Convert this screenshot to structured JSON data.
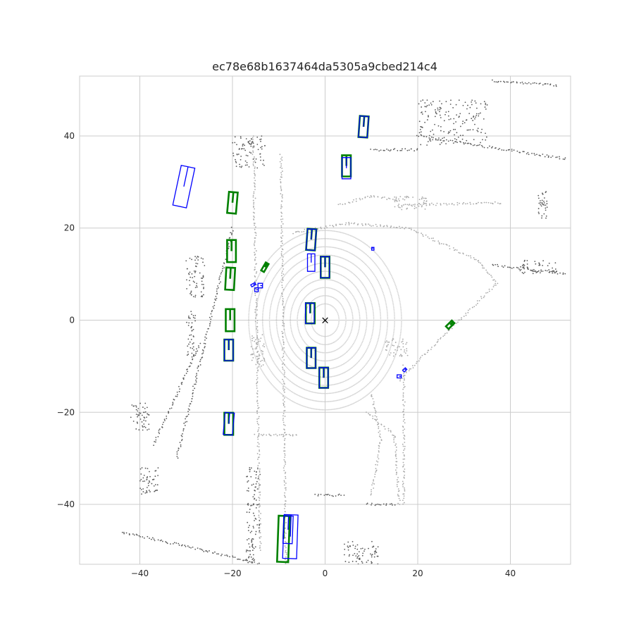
{
  "chart_data": {
    "type": "scatter",
    "title": "ec78e68b1637464da5305a9cbed214c4",
    "xlabel": "",
    "ylabel": "",
    "xlim": [
      -53,
      53
    ],
    "ylim": [
      -53,
      53
    ],
    "xticks": [
      -40,
      -20,
      0,
      20,
      40
    ],
    "yticks": [
      -40,
      -20,
      0,
      20,
      40
    ],
    "grid": true,
    "ego_marker": {
      "x": 0,
      "y": 0,
      "symbol": "×",
      "color": "#000000"
    },
    "colors": {
      "ground_truth": "#008000",
      "prediction": "#0000ff",
      "lidar_near": "#d3d3d3",
      "lidar_mid": "#a9a9a9",
      "lidar_far": "#595959"
    },
    "ground_truth_boxes": [
      {
        "cx": 8.3,
        "cy": 42.0,
        "w": 1.9,
        "l": 4.6,
        "yaw": 86
      },
      {
        "cx": 4.6,
        "cy": 33.5,
        "w": 1.9,
        "l": 4.6,
        "yaw": 90
      },
      {
        "cx": -20.0,
        "cy": 25.5,
        "w": 1.9,
        "l": 4.6,
        "yaw": 85
      },
      {
        "cx": -20.2,
        "cy": 15.0,
        "w": 1.9,
        "l": 4.8,
        "yaw": 90
      },
      {
        "cx": -20.5,
        "cy": 9.0,
        "w": 1.9,
        "l": 4.8,
        "yaw": 87
      },
      {
        "cx": -3.0,
        "cy": 17.5,
        "w": 1.9,
        "l": 4.6,
        "yaw": 86
      },
      {
        "cx": 0.0,
        "cy": 11.5,
        "w": 1.9,
        "l": 4.6,
        "yaw": 90
      },
      {
        "cx": -13.0,
        "cy": 11.5,
        "w": 0.7,
        "l": 2.0,
        "yaw": 60
      },
      {
        "cx": -20.5,
        "cy": 0.0,
        "w": 1.9,
        "l": 4.8,
        "yaw": 90
      },
      {
        "cx": -20.8,
        "cy": -6.5,
        "w": 1.9,
        "l": 4.6,
        "yaw": 90
      },
      {
        "cx": -3.2,
        "cy": 1.5,
        "w": 1.9,
        "l": 4.4,
        "yaw": 90
      },
      {
        "cx": -3.0,
        "cy": -8.2,
        "w": 1.9,
        "l": 4.4,
        "yaw": 90
      },
      {
        "cx": -0.3,
        "cy": -12.5,
        "w": 1.9,
        "l": 4.4,
        "yaw": 90
      },
      {
        "cx": 27.0,
        "cy": -1.0,
        "w": 0.8,
        "l": 1.8,
        "yaw": 45
      },
      {
        "cx": -20.8,
        "cy": -22.5,
        "w": 1.9,
        "l": 4.8,
        "yaw": 90
      },
      {
        "cx": -9.0,
        "cy": -47.5,
        "w": 2.4,
        "l": 10.0,
        "yaw": 88
      }
    ],
    "predicted_boxes": [
      {
        "cx": 8.3,
        "cy": 42.0,
        "w": 1.9,
        "l": 4.6,
        "yaw": 86
      },
      {
        "cx": 4.6,
        "cy": 33.0,
        "w": 1.9,
        "l": 4.6,
        "yaw": 90
      },
      {
        "cx": -30.5,
        "cy": 29.0,
        "w": 3.0,
        "l": 8.8,
        "yaw": 78
      },
      {
        "cx": -3.0,
        "cy": 17.5,
        "w": 1.9,
        "l": 4.6,
        "yaw": 86
      },
      {
        "cx": -3.0,
        "cy": 12.5,
        "w": 1.6,
        "l": 3.8,
        "yaw": 90
      },
      {
        "cx": 0.0,
        "cy": 11.5,
        "w": 1.9,
        "l": 4.6,
        "yaw": 90
      },
      {
        "cx": 10.3,
        "cy": 15.5,
        "w": 0.5,
        "l": 0.6,
        "yaw": 90
      },
      {
        "cx": -15.5,
        "cy": 7.7,
        "w": 0.5,
        "l": 1.0,
        "yaw": 30
      },
      {
        "cx": -14.0,
        "cy": 7.5,
        "w": 1.0,
        "l": 1.0,
        "yaw": 0
      },
      {
        "cx": -14.8,
        "cy": 6.6,
        "w": 0.8,
        "l": 0.8,
        "yaw": 0
      },
      {
        "cx": -3.3,
        "cy": 1.5,
        "w": 1.9,
        "l": 4.4,
        "yaw": 90
      },
      {
        "cx": -20.8,
        "cy": -6.5,
        "w": 1.9,
        "l": 4.6,
        "yaw": 90
      },
      {
        "cx": -3.0,
        "cy": -8.2,
        "w": 1.9,
        "l": 4.4,
        "yaw": 90
      },
      {
        "cx": -0.3,
        "cy": -12.5,
        "w": 1.9,
        "l": 4.4,
        "yaw": 90
      },
      {
        "cx": 16.0,
        "cy": -12.2,
        "w": 0.7,
        "l": 0.9,
        "yaw": 0
      },
      {
        "cx": 17.2,
        "cy": -10.8,
        "w": 0.5,
        "l": 0.8,
        "yaw": 45
      },
      {
        "cx": -20.8,
        "cy": -22.5,
        "w": 2.0,
        "l": 4.8,
        "yaw": 85
      },
      {
        "cx": -7.5,
        "cy": -47.0,
        "w": 3.0,
        "l": 9.5,
        "yaw": 88
      },
      {
        "cx": -8.0,
        "cy": -45.5,
        "w": 2.0,
        "l": 6.0,
        "yaw": 88
      }
    ],
    "lidar_rings": {
      "center": [
        0,
        0
      ],
      "radii": [
        3,
        4.5,
        6,
        7.5,
        9,
        10.5,
        12,
        13.5,
        15,
        16.5
      ],
      "aspect_y": 1.18
    },
    "lidar_segments": [
      {
        "shade": "far",
        "points": [
          [
            -20,
            20
          ],
          [
            -32,
            -30
          ]
        ]
      },
      {
        "shade": "far",
        "points": [
          [
            -27,
            -5
          ],
          [
            -37,
            -27
          ]
        ]
      },
      {
        "shade": "mid",
        "points": [
          [
            -15.5,
            40
          ],
          [
            -14,
            -50
          ]
        ]
      },
      {
        "shade": "mid",
        "points": [
          [
            -9.5,
            36
          ],
          [
            -8.5,
            -53
          ]
        ]
      },
      {
        "shade": "mid",
        "points": [
          [
            16,
            25
          ],
          [
            38,
            25.5
          ]
        ]
      },
      {
        "shade": "mid",
        "points": [
          [
            3,
            25
          ],
          [
            10,
            27
          ],
          [
            16,
            26
          ]
        ]
      },
      {
        "shade": "mid",
        "points": [
          [
            -7,
            19
          ],
          [
            5,
            21
          ],
          [
            18,
            20
          ],
          [
            33,
            13
          ],
          [
            37,
            8
          ]
        ]
      },
      {
        "shade": "mid",
        "points": [
          [
            37,
            8
          ],
          [
            16,
            -13
          ]
        ]
      },
      {
        "shade": "mid",
        "points": [
          [
            17,
            -10
          ],
          [
            17,
            -40
          ]
        ]
      },
      {
        "shade": "mid",
        "points": [
          [
            9,
            -20
          ],
          [
            15,
            -25
          ],
          [
            16,
            -40
          ]
        ]
      },
      {
        "shade": "mid",
        "points": [
          [
            10,
            -16
          ],
          [
            12,
            -26
          ],
          [
            10,
            -38
          ]
        ]
      },
      {
        "shade": "far",
        "points": [
          [
            -44,
            -46
          ],
          [
            -26,
            -50
          ],
          [
            -14,
            -53
          ]
        ]
      },
      {
        "shade": "far",
        "points": [
          [
            9,
            -40
          ],
          [
            15,
            -40
          ]
        ]
      },
      {
        "shade": "far",
        "points": [
          [
            36,
            12
          ],
          [
            52,
            10
          ]
        ]
      },
      {
        "shade": "far",
        "points": [
          [
            36,
            52
          ],
          [
            50,
            51
          ]
        ]
      },
      {
        "shade": "far",
        "points": [
          [
            20,
            40
          ],
          [
            52,
            35
          ]
        ]
      },
      {
        "shade": "far",
        "points": [
          [
            10,
            37
          ],
          [
            20,
            37
          ]
        ]
      },
      {
        "shade": "mid",
        "points": [
          [
            -15,
            -25
          ],
          [
            -6,
            -25
          ]
        ]
      },
      {
        "shade": "far",
        "points": [
          [
            -2,
            -38
          ],
          [
            4,
            -38
          ]
        ]
      }
    ],
    "lidar_clusters": [
      {
        "shade": "far",
        "x": [
          20,
          35
        ],
        "y": [
          38,
          48
        ]
      },
      {
        "shade": "far",
        "x": [
          -20,
          -13
        ],
        "y": [
          33,
          40
        ]
      },
      {
        "shade": "far",
        "x": [
          -30,
          -26
        ],
        "y": [
          5,
          14
        ]
      },
      {
        "shade": "far",
        "x": [
          -30,
          -28
        ],
        "y": [
          -8,
          2
        ]
      },
      {
        "shade": "far",
        "x": [
          -42,
          -38
        ],
        "y": [
          -24,
          -18
        ]
      },
      {
        "shade": "far",
        "x": [
          -17,
          -14
        ],
        "y": [
          -46,
          -32
        ]
      },
      {
        "shade": "far",
        "x": [
          -17,
          -15
        ],
        "y": [
          -53,
          -46
        ]
      },
      {
        "shade": "far",
        "x": [
          4,
          12
        ],
        "y": [
          -53,
          -48
        ]
      },
      {
        "shade": "far",
        "x": [
          42,
          50
        ],
        "y": [
          10,
          13
        ]
      },
      {
        "shade": "far",
        "x": [
          46,
          48
        ],
        "y": [
          22,
          28
        ]
      },
      {
        "shade": "mid",
        "x": [
          15,
          22
        ],
        "y": [
          24,
          27
        ]
      },
      {
        "shade": "mid",
        "x": [
          -16,
          -13
        ],
        "y": [
          -10,
          -3
        ]
      },
      {
        "shade": "mid",
        "x": [
          13,
          18
        ],
        "y": [
          -8,
          -4
        ]
      },
      {
        "shade": "far",
        "x": [
          -40,
          -36
        ],
        "y": [
          -38,
          -32
        ]
      }
    ]
  }
}
